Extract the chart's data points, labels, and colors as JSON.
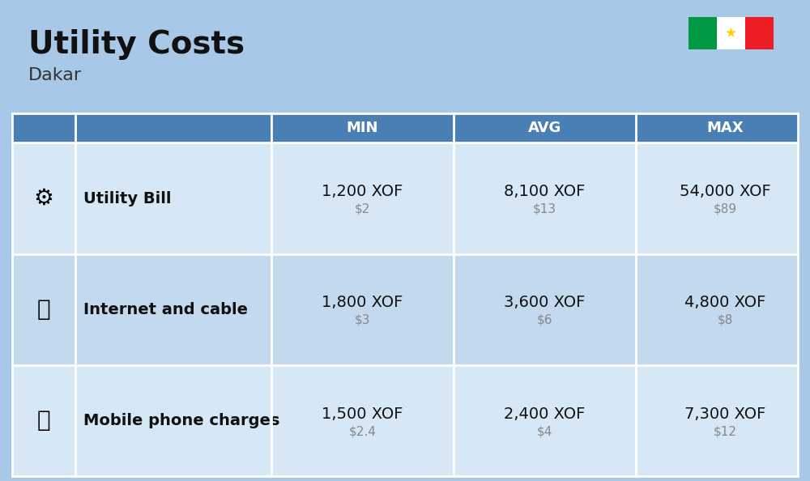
{
  "title": "Utility Costs",
  "subtitle": "Dakar",
  "background_color": "#a8c8e8",
  "header_color": "#4a7fb5",
  "header_text_color": "#ffffff",
  "row_bg_color_1": "#d6e8f5",
  "row_bg_color_2": "#c2d9ee",
  "divider_color": "#ffffff",
  "col_header": [
    "MIN",
    "AVG",
    "MAX"
  ],
  "rows": [
    {
      "label": "Utility Bill",
      "min_xof": "1,200 XOF",
      "min_usd": "$2",
      "avg_xof": "8,100 XOF",
      "avg_usd": "$13",
      "max_xof": "54,000 XOF",
      "max_usd": "$89"
    },
    {
      "label": "Internet and cable",
      "min_xof": "1,800 XOF",
      "min_usd": "$3",
      "avg_xof": "3,600 XOF",
      "avg_usd": "$6",
      "max_xof": "4,800 XOF",
      "max_usd": "$8"
    },
    {
      "label": "Mobile phone charges",
      "min_xof": "1,500 XOF",
      "min_usd": "$2.4",
      "avg_xof": "2,400 XOF",
      "avg_usd": "$4",
      "max_xof": "7,300 XOF",
      "max_usd": "$12"
    }
  ],
  "flag_colors": [
    "#009A44",
    "#FFFFFF",
    "#EE1C25"
  ],
  "flag_star_color": "#FFCD00",
  "title_fontsize": 28,
  "subtitle_fontsize": 16,
  "header_fontsize": 13,
  "cell_fontsize": 14,
  "label_fontsize": 14,
  "usd_fontsize": 11,
  "usd_color": "#888888"
}
